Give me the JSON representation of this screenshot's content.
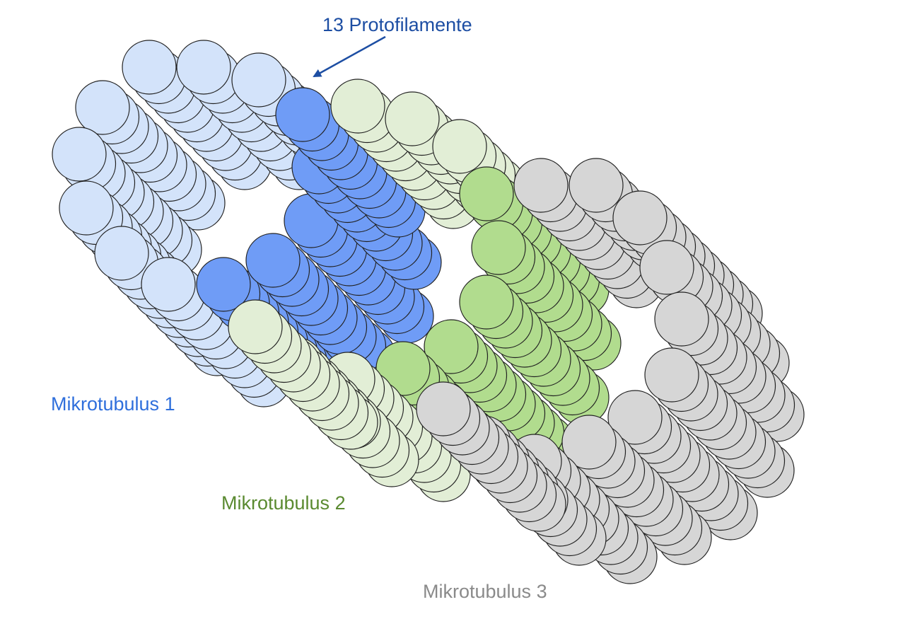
{
  "labels": {
    "protofilament": "13 Protofilamente",
    "mt1": "Mikrotubulus 1",
    "mt2": "Mikrotubulus 2",
    "mt3": "Mikrotubulus 3"
  },
  "colors": {
    "mt1_light": "#d3e3fa",
    "mt1_dark": "#6f9cf6",
    "mt2_light": "#e2eed6",
    "mt2_dark": "#b1dc8e",
    "mt3": "#d6d6d6",
    "stroke": "#222222",
    "label_mt1": "#2f6fdc",
    "label_mt2": "#5a8a30",
    "label_mt3": "#8a8a8a",
    "label_proto": "#1d4ea3"
  },
  "protofilament_count": 13,
  "microtubules": [
    {
      "name": "mt1",
      "protofilaments": 13
    },
    {
      "name": "mt2",
      "protofilaments": 13
    },
    {
      "name": "mt3",
      "protofilaments": 13
    }
  ]
}
